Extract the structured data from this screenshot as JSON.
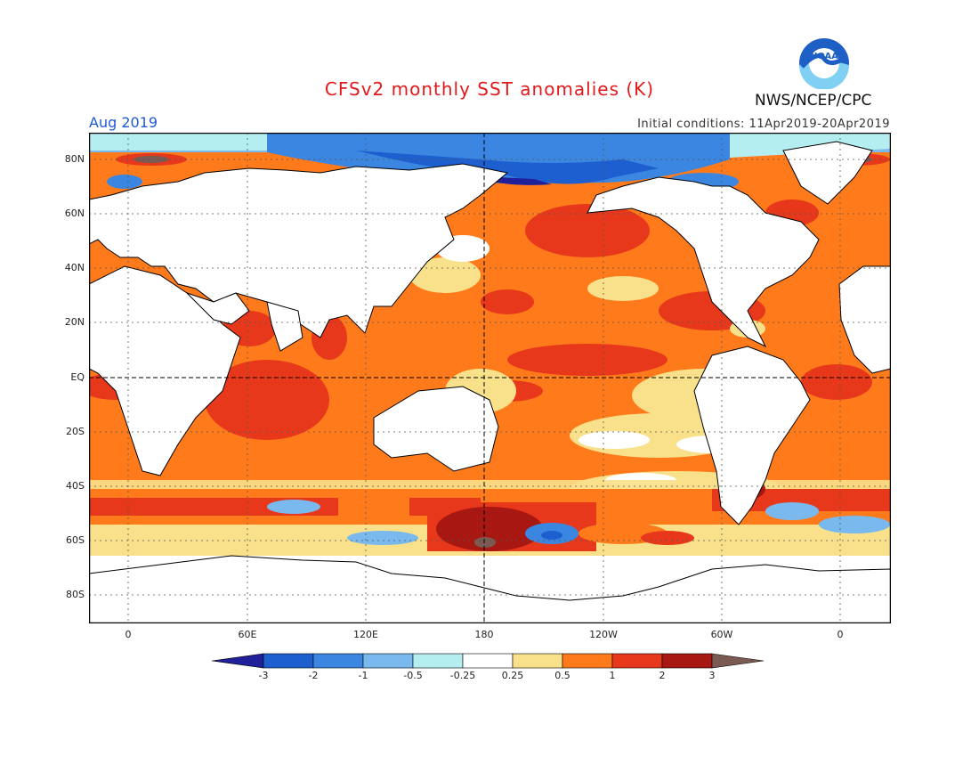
{
  "header": {
    "title": "CFSv2 monthly SST anomalies (K)",
    "period": "Aug 2019",
    "initial_conditions": "Initial conditions: 11Apr2019-20Apr2019",
    "agency": "NWS/NCEP/CPC",
    "logo_text": "NOAA"
  },
  "map": {
    "lat_labels": [
      "80N",
      "60N",
      "40N",
      "20N",
      "EQ",
      "20S",
      "40S",
      "60S",
      "80S"
    ],
    "lon_labels": [
      "0",
      "60E",
      "120E",
      "180",
      "120W",
      "60W",
      "0"
    ],
    "colors": {
      "land": "#ffffff",
      "coast": "#000000",
      "grid": "#555555"
    }
  },
  "colorbar": {
    "labels": [
      "-3",
      "-2",
      "-1",
      "-0.5",
      "-0.25",
      "0.25",
      "0.5",
      "1",
      "2",
      "3"
    ],
    "colors": [
      "#20209a",
      "#1e5fd0",
      "#3b86e0",
      "#79b9ee",
      "#b4eef0",
      "#ffffff",
      "#f9e08a",
      "#ff7a1a",
      "#e8381c",
      "#a81812",
      "#7a5a52"
    ]
  }
}
